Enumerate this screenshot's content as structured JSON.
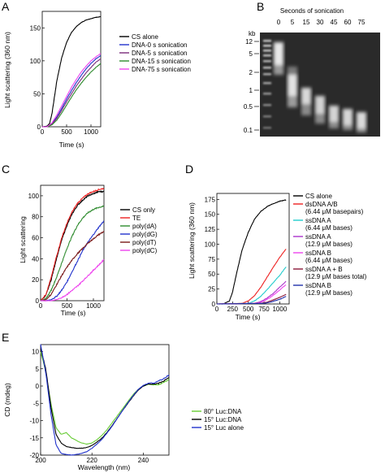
{
  "panels": {
    "A": {
      "letter": "A",
      "chart_data": {
        "type": "line",
        "title": "",
        "xlabel": "Time (s)",
        "ylabel": "Light scattering (360 nm)",
        "xlim": [
          0,
          1200
        ],
        "ylim": [
          0,
          175
        ],
        "xticks": [
          0,
          500,
          1000
        ],
        "yticks": [
          0,
          50,
          100,
          150
        ],
        "legend_position": "right",
        "series": [
          {
            "name": "CS alone",
            "color": "#000000",
            "x": [
              0,
              100,
              150,
              200,
              250,
              300,
              400,
              500,
              600,
              700,
              800,
              900,
              1000,
              1100,
              1200
            ],
            "y": [
              0,
              1,
              5,
              20,
              45,
              70,
              105,
              128,
              143,
              152,
              158,
              162,
              164,
              166,
              167
            ]
          },
          {
            "name": "DNA-0 s sonication",
            "color": "#2233cc",
            "x": [
              0,
              100,
              200,
              300,
              400,
              500,
              600,
              700,
              800,
              900,
              1000,
              1100,
              1200
            ],
            "y": [
              0,
              0,
              5,
              15,
              28,
              42,
              55,
              67,
              78,
              88,
              96,
              103,
              108
            ]
          },
          {
            "name": "DNA-5 s sonication",
            "color": "#7a2a7a",
            "x": [
              0,
              100,
              200,
              300,
              400,
              500,
              600,
              700,
              800,
              900,
              1000,
              1100,
              1200
            ],
            "y": [
              0,
              0,
              4,
              13,
              25,
              38,
              50,
              62,
              72,
              82,
              90,
              98,
              103
            ]
          },
          {
            "name": "DNA-15 s sonication",
            "color": "#2e8b2e",
            "x": [
              0,
              100,
              200,
              300,
              400,
              500,
              600,
              700,
              800,
              900,
              1000,
              1100,
              1200
            ],
            "y": [
              0,
              0,
              3,
              10,
              21,
              33,
              45,
              56,
              66,
              75,
              83,
              90,
              96
            ]
          },
          {
            "name": "DNA-75 s sonication",
            "color": "#ee44ee",
            "x": [
              0,
              100,
              200,
              300,
              400,
              500,
              600,
              700,
              800,
              900,
              1000,
              1100,
              1200
            ],
            "y": [
              0,
              0,
              6,
              18,
              32,
              46,
              60,
              72,
              83,
              92,
              100,
              106,
              111
            ]
          }
        ]
      }
    },
    "B": {
      "letter": "B",
      "title": "Seconds of sonication",
      "lanes": [
        "0",
        "5",
        "15",
        "30",
        "45",
        "60",
        "75"
      ],
      "unit": "kb",
      "markers": [
        "12",
        "5",
        "2",
        "1",
        "0.5",
        "0.1"
      ]
    },
    "C": {
      "letter": "C",
      "chart_data": {
        "type": "line",
        "title": "",
        "xlabel": "Time (s)",
        "ylabel": "Light scattering",
        "xlim": [
          0,
          1200
        ],
        "ylim": [
          0,
          110
        ],
        "xticks": [
          0,
          500,
          1000
        ],
        "yticks": [
          0,
          20,
          40,
          60,
          80,
          100
        ],
        "legend_position": "right",
        "series": [
          {
            "name": "CS only",
            "color": "#000000",
            "x": [
              0,
              100,
              200,
              300,
              400,
              500,
              600,
              700,
              800,
              900,
              1000,
              1100,
              1200
            ],
            "y": [
              0,
              5,
              20,
              40,
              58,
              72,
              83,
              91,
              96,
              100,
              102,
              104,
              104
            ]
          },
          {
            "name": "TE",
            "color": "#ee2222",
            "x": [
              0,
              100,
              200,
              300,
              400,
              500,
              600,
              700,
              800,
              900,
              1000,
              1100,
              1200
            ],
            "y": [
              0,
              6,
              22,
              42,
              60,
              74,
              85,
              93,
              98,
              102,
              104,
              106,
              107
            ]
          },
          {
            "name": "poly(dA)",
            "color": "#2e8b2e",
            "x": [
              0,
              100,
              200,
              300,
              400,
              500,
              600,
              700,
              800,
              900,
              1000,
              1100,
              1200
            ],
            "y": [
              0,
              2,
              10,
              22,
              36,
              50,
              62,
              72,
              79,
              84,
              87,
              89,
              90
            ]
          },
          {
            "name": "poly(dG)",
            "color": "#2233cc",
            "x": [
              0,
              100,
              200,
              300,
              400,
              500,
              600,
              700,
              800,
              900,
              1000,
              1100,
              1200
            ],
            "y": [
              0,
              0,
              1,
              4,
              10,
              18,
              28,
              38,
              48,
              56,
              63,
              70,
              76
            ]
          },
          {
            "name": "poly(dT)",
            "color": "#7a1a1a",
            "x": [
              0,
              100,
              200,
              300,
              400,
              500,
              600,
              700,
              800,
              900,
              1000,
              1100,
              1200
            ],
            "y": [
              0,
              1,
              6,
              15,
              24,
              32,
              39,
              45,
              50,
              55,
              59,
              63,
              66
            ]
          },
          {
            "name": "poly(dC)",
            "color": "#ee44ee",
            "x": [
              0,
              100,
              200,
              300,
              400,
              500,
              600,
              700,
              800,
              900,
              1000,
              1100,
              1200
            ],
            "y": [
              0,
              0,
              0,
              1,
              3,
              6,
              10,
              14,
              19,
              24,
              29,
              34,
              39
            ]
          }
        ]
      }
    },
    "D": {
      "letter": "D",
      "chart_data": {
        "type": "line",
        "title": "",
        "xlabel": "Time (s)",
        "ylabel": "Light scattering (360 nm)",
        "xlim": [
          0,
          1150
        ],
        "ylim": [
          0,
          185
        ],
        "xticks": [
          0,
          250,
          500,
          750,
          1000
        ],
        "yticks": [
          0,
          25,
          50,
          75,
          100,
          125,
          150,
          175
        ],
        "legend_position": "right",
        "series": [
          {
            "name": "CS alone",
            "color": "#000000",
            "x": [
              0,
              100,
              200,
              250,
              300,
              400,
              500,
              600,
              700,
              800,
              900,
              1000,
              1100
            ],
            "y": [
              0,
              0,
              5,
              20,
              45,
              90,
              120,
              142,
              155,
              163,
              168,
              172,
              174
            ]
          },
          {
            "name": "dsDNA A/B",
            "sub": "(6.44 μM basepairs)",
            "color": "#ee2222",
            "x": [
              0,
              400,
              500,
              600,
              700,
              800,
              900,
              1000,
              1100
            ],
            "y": [
              0,
              1,
              5,
              14,
              28,
              45,
              62,
              78,
              92
            ]
          },
          {
            "name": "ssDNA A",
            "sub": "(6.44 μM bases)",
            "color": "#22cccc",
            "x": [
              0,
              500,
              600,
              700,
              800,
              900,
              1000,
              1100
            ],
            "y": [
              0,
              1,
              5,
              13,
              24,
              36,
              48,
              62
            ]
          },
          {
            "name": "ssDNA A",
            "sub": "(12.9 μM bases)",
            "color": "#aa33cc",
            "x": [
              0,
              600,
              700,
              800,
              900,
              1000,
              1100
            ],
            "y": [
              0,
              1,
              4,
              10,
              18,
              28,
              38
            ]
          },
          {
            "name": "ssDNA B",
            "sub": "(6.44 μM bases)",
            "color": "#ee44ee",
            "x": [
              0,
              650,
              750,
              850,
              950,
              1050,
              1100
            ],
            "y": [
              0,
              1,
              5,
              11,
              19,
              28,
              32
            ]
          },
          {
            "name": "ssDNA A + B",
            "sub": "(12.9 μM bases total)",
            "color": "#8b1a3a",
            "x": [
              0,
              700,
              800,
              900,
              1000,
              1100
            ],
            "y": [
              0,
              1,
              3,
              7,
              11,
              16
            ]
          },
          {
            "name": "ssDNA B",
            "sub": "(12.9 μM bases)",
            "color": "#2233aa",
            "x": [
              0,
              750,
              850,
              950,
              1050,
              1100
            ],
            "y": [
              0,
              1,
              3,
              6,
              10,
              13
            ]
          }
        ]
      }
    },
    "E": {
      "letter": "E",
      "chart_data": {
        "type": "line",
        "title": "",
        "xlabel": "Wavelength (nm)",
        "ylabel": "CD (mdeg)",
        "xlim": [
          200,
          250
        ],
        "ylim": [
          -20,
          12
        ],
        "xticks": [
          200,
          220,
          240
        ],
        "yticks": [
          -20,
          -15,
          -10,
          -5,
          0,
          5,
          10
        ],
        "legend_position": "right",
        "series": [
          {
            "name": "80° Luc:DNA",
            "color": "#66cc33",
            "x": [
              200,
              202,
              204,
              206,
              208,
              210,
              212,
              214,
              216,
              218,
              220,
              222,
              224,
              226,
              228,
              230,
              232,
              234,
              236,
              238,
              240,
              242,
              244,
              246,
              248,
              250
            ],
            "y": [
              10,
              4,
              -5,
              -12,
              -14,
              -13.5,
              -15,
              -15.8,
              -16.5,
              -16.8,
              -16.5,
              -15.5,
              -14.2,
              -12.5,
              -10.5,
              -8.5,
              -6.5,
              -4.5,
              -2.5,
              -1,
              0,
              0.5,
              0.3,
              0.4,
              1,
              2
            ]
          },
          {
            "name": "15° Luc:DNA",
            "color": "#000000",
            "x": [
              200,
              202,
              204,
              206,
              208,
              210,
              212,
              214,
              216,
              218,
              220,
              222,
              224,
              226,
              228,
              230,
              232,
              234,
              236,
              238,
              240,
              242,
              244,
              246,
              248,
              250
            ],
            "y": [
              11,
              5,
              -6,
              -14,
              -16.5,
              -17.5,
              -17.8,
              -18,
              -18,
              -17.8,
              -17.2,
              -16.2,
              -15,
              -13.3,
              -11.3,
              -9.2,
              -7,
              -5,
              -3,
              -1.2,
              0,
              0.6,
              0.5,
              0.8,
              1.5,
              2.5
            ]
          },
          {
            "name": "15° Luc alone",
            "color": "#2233cc",
            "x": [
              200,
              202,
              204,
              206,
              208,
              210,
              212,
              214,
              216,
              218,
              220,
              222,
              224,
              226,
              228,
              230,
              232,
              234,
              236,
              238,
              240,
              242,
              244,
              246,
              248,
              250
            ],
            "y": [
              12,
              4,
              -8,
              -17,
              -19.5,
              -19.8,
              -20,
              -19.8,
              -19.5,
              -19,
              -18,
              -16.8,
              -15.3,
              -13.5,
              -11.5,
              -9.2,
              -7,
              -4.8,
              -2.8,
              -1,
              0.2,
              0.8,
              0.9,
              1.4,
              2.2,
              3.2
            ]
          }
        ]
      }
    }
  }
}
